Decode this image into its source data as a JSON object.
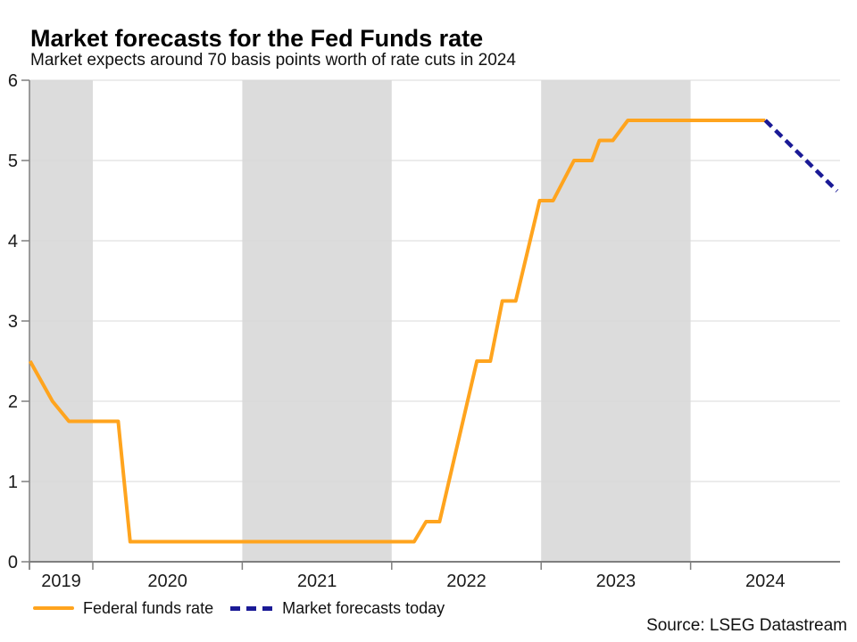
{
  "page": {
    "title": "Market forecasts for the Fed Funds rate",
    "subtitle": "Market expects around 70 basis points worth of rate cuts in 2024",
    "source": "Source: LSEG Datastream"
  },
  "legend": [
    {
      "label": "Federal funds rate",
      "style": "solid",
      "color": "#FFA41E"
    },
    {
      "label": "Market forecasts today",
      "style": "dashed",
      "color": "#1A1A96"
    }
  ],
  "colors": {
    "band": "#DCDCDC",
    "grid": "#D9D9D9",
    "axis": "#7F7F7F",
    "tick": "#7F7F7F",
    "label": "#1A1A1A"
  },
  "chart_data": {
    "type": "line",
    "title": "Market forecasts for the Fed Funds rate",
    "subtitle": "Market expects around 70 basis points worth of rate cuts in 2024",
    "x_axis": {
      "range": [
        2019.576,
        2025.0
      ],
      "tick_years": [
        2019.576,
        2020,
        2021,
        2022,
        2023,
        2024
      ],
      "labels": [
        {
          "text": "2019",
          "span": [
            2019.576,
            2020
          ]
        },
        {
          "text": "2020",
          "span": [
            2020,
            2021
          ]
        },
        {
          "text": "2021",
          "span": [
            2021,
            2022
          ]
        },
        {
          "text": "2022",
          "span": [
            2022,
            2023
          ]
        },
        {
          "text": "2023",
          "span": [
            2023,
            2024
          ]
        },
        {
          "text": "2024",
          "span": [
            2024,
            2025
          ]
        }
      ]
    },
    "y_axis": {
      "range": [
        0,
        6
      ],
      "ticks": [
        0,
        1,
        2,
        3,
        4,
        5,
        6
      ],
      "unit": "percent"
    },
    "shaded_bands": [
      [
        2019.576,
        2020
      ],
      [
        2021,
        2022
      ],
      [
        2023,
        2024
      ]
    ],
    "series": [
      {
        "name": "Federal funds rate",
        "style": "solid",
        "color": "#FFA41E",
        "points": [
          [
            2019.58,
            2.5
          ],
          [
            2019.73,
            2.0
          ],
          [
            2019.84,
            1.75
          ],
          [
            2020.17,
            1.75
          ],
          [
            2020.25,
            0.25
          ],
          [
            2022.15,
            0.25
          ],
          [
            2022.23,
            0.5
          ],
          [
            2022.32,
            0.5
          ],
          [
            2022.57,
            2.5
          ],
          [
            2022.66,
            2.5
          ],
          [
            2022.74,
            3.25
          ],
          [
            2022.83,
            3.25
          ],
          [
            2022.99,
            4.5
          ],
          [
            2023.08,
            4.5
          ],
          [
            2023.22,
            5.0
          ],
          [
            2023.34,
            5.0
          ],
          [
            2023.39,
            5.25
          ],
          [
            2023.48,
            5.25
          ],
          [
            2023.58,
            5.5
          ],
          [
            2024.5,
            5.5
          ]
        ]
      },
      {
        "name": "Market forecasts today",
        "style": "dashed",
        "color": "#1A1A96",
        "points": [
          [
            2024.5,
            5.5
          ],
          [
            2024.98,
            4.62
          ]
        ]
      }
    ]
  }
}
